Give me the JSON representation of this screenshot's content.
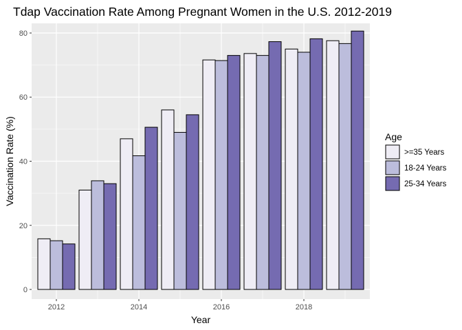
{
  "chart_data": {
    "type": "bar",
    "title": "Tdap Vaccination Rate Among Pregnant Women in the U.S. 2012-2019",
    "xlabel": "Year",
    "ylabel": "Vaccination Rate (%)",
    "categories": [
      "2012",
      "2013",
      "2014",
      "2015",
      "2016",
      "2017",
      "2018",
      "2019"
    ],
    "x_ticks": [
      "2012",
      "2014",
      "2016",
      "2018"
    ],
    "y_ticks": [
      "0",
      "20",
      "40",
      "60",
      "80"
    ],
    "ylim": [
      -3,
      83
    ],
    "xlim": [
      2011.4,
      2019.6
    ],
    "grid": true,
    "legend": {
      "title": "Age",
      "position": "right"
    },
    "series": [
      {
        "name": ">=35 Years",
        "color": "#efedf5",
        "values": [
          15.8,
          31.0,
          47.0,
          56.0,
          71.6,
          73.6,
          75.0,
          77.6
        ]
      },
      {
        "name": "18-24 Years",
        "color": "#bcbddc",
        "values": [
          15.2,
          33.9,
          41.7,
          49.0,
          71.4,
          73.0,
          74.0,
          76.7
        ]
      },
      {
        "name": "25-34 Years",
        "color": "#756bb1",
        "values": [
          14.2,
          33.0,
          50.6,
          54.5,
          73.0,
          77.3,
          78.2,
          80.6
        ]
      }
    ]
  }
}
